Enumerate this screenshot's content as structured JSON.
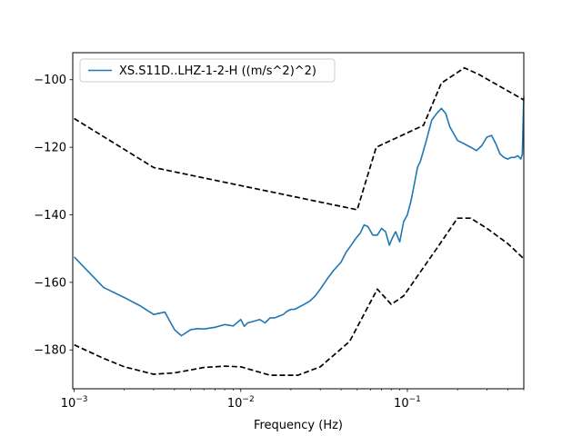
{
  "chart_data": {
    "type": "line",
    "xlabel": "Frequency (Hz)",
    "ylabel": "",
    "xscale": "log",
    "xlim": [
      0.00098,
      0.5
    ],
    "ylim": [
      -191.5,
      -92
    ],
    "x_ticks": [
      {
        "value": 0.001,
        "label": "10",
        "exp": "−3"
      },
      {
        "value": 0.01,
        "label": "10",
        "exp": "−2"
      },
      {
        "value": 0.1,
        "label": "10",
        "exp": "−1"
      }
    ],
    "y_ticks": [
      {
        "value": -100,
        "label": "−100"
      },
      {
        "value": -120,
        "label": "−120"
      },
      {
        "value": -140,
        "label": "−140"
      },
      {
        "value": -160,
        "label": "−160"
      },
      {
        "value": -180,
        "label": "−180"
      }
    ],
    "grid": false,
    "legend_position": "top-left",
    "series": [
      {
        "name": "XS.S11D..LHZ-1-2-H ((m/s^2)^2)",
        "color": "#1f77b4",
        "style": "solid",
        "x": [
          0.001,
          0.0015,
          0.002,
          0.0025,
          0.003,
          0.0035,
          0.004,
          0.0044,
          0.005,
          0.0055,
          0.006,
          0.007,
          0.008,
          0.009,
          0.01,
          0.0105,
          0.011,
          0.012,
          0.013,
          0.014,
          0.015,
          0.016,
          0.017,
          0.018,
          0.019,
          0.02,
          0.021,
          0.022,
          0.024,
          0.026,
          0.028,
          0.03,
          0.033,
          0.036,
          0.04,
          0.043,
          0.046,
          0.049,
          0.052,
          0.055,
          0.058,
          0.062,
          0.066,
          0.07,
          0.074,
          0.078,
          0.081,
          0.085,
          0.09,
          0.095,
          0.1,
          0.105,
          0.11,
          0.115,
          0.12,
          0.13,
          0.14,
          0.15,
          0.16,
          0.17,
          0.18,
          0.19,
          0.2,
          0.22,
          0.24,
          0.26,
          0.28,
          0.3,
          0.32,
          0.34,
          0.36,
          0.38,
          0.4,
          0.42,
          0.44,
          0.46,
          0.48,
          0.49,
          0.5
        ],
        "y": [
          -152.5,
          -161.5,
          -164.5,
          -167,
          -169.5,
          -168.8,
          -174,
          -175.8,
          -174,
          -173.7,
          -173.8,
          -173.3,
          -172.5,
          -172.9,
          -171,
          -173,
          -172,
          -171.5,
          -171,
          -172,
          -170.5,
          -170.5,
          -170,
          -169.5,
          -168.5,
          -168,
          -168,
          -167.5,
          -166.5,
          -165.5,
          -164,
          -162,
          -159,
          -156.5,
          -154,
          -151,
          -149,
          -147,
          -145.5,
          -143,
          -143.5,
          -146,
          -146,
          -144,
          -145,
          -149,
          -147,
          -145,
          -148,
          -142,
          -140,
          -136,
          -131,
          -126,
          -124,
          -118,
          -112,
          -110,
          -108.5,
          -110,
          -114,
          -116,
          -118,
          -119,
          -120,
          -121,
          -119.5,
          -117,
          -116.5,
          -119,
          -122,
          -123,
          -123.5,
          -123,
          -123,
          -122.5,
          -123.5,
          -122,
          -105
        ]
      },
      {
        "name": "",
        "color": "#000000",
        "style": "dashed",
        "x": [
          0.001,
          0.003,
          0.05,
          0.065,
          0.125,
          0.16,
          0.22,
          0.27,
          0.5
        ],
        "y": [
          -111.5,
          -126,
          -138.5,
          -120,
          -113.5,
          -101,
          -96.5,
          -98.5,
          -106
        ]
      },
      {
        "name": "",
        "color": "#000000",
        "style": "dashed",
        "x": [
          0.001,
          0.0015,
          0.002,
          0.003,
          0.004,
          0.006,
          0.008,
          0.01,
          0.015,
          0.022,
          0.03,
          0.045,
          0.066,
          0.08,
          0.095,
          0.15,
          0.2,
          0.24,
          0.3,
          0.4,
          0.5
        ],
        "y": [
          -178.5,
          -182.5,
          -185,
          -187.2,
          -186.8,
          -185.2,
          -184.8,
          -185,
          -187.5,
          -187.5,
          -185,
          -177.5,
          -162,
          -166.5,
          -164,
          -150,
          -141,
          -141,
          -144,
          -148.5,
          -153
        ]
      }
    ]
  }
}
